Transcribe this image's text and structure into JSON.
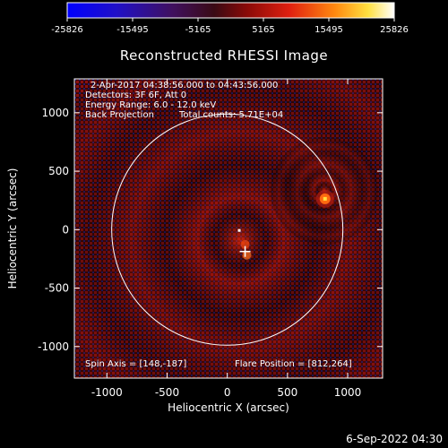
{
  "colorbar": {
    "ticks": [
      "-25826",
      "-15495",
      "-5165",
      "5165",
      "15495",
      "25826"
    ],
    "min": -25826,
    "max": 25826
  },
  "plot": {
    "title": "Reconstructed RHESSI Image",
    "xlabel": "Heliocentric X (arcsec)",
    "ylabel": "Heliocentric Y (arcsec)",
    "x_ticks": [
      "-1000",
      "-500",
      "0",
      "500",
      "1000"
    ],
    "y_ticks": [
      "1000",
      "500",
      "0",
      "-500",
      "-1000"
    ],
    "xlim": [
      -1270,
      1290
    ],
    "ylim": [
      -1270,
      1290
    ]
  },
  "annotations": {
    "time_range": "2-Apr-2017 04:38:56.000 to 04:43:56.000",
    "detectors": "Detectors: 3F 6F, Att 0",
    "energy": "Energy Range: 6.0 - 12.0 keV",
    "method": "Back Projection",
    "counts": "Total counts: 5.71E+04",
    "spin_axis": "Spin Axis = [148,-187]",
    "flare_position": "Flare Position = [812,264]"
  },
  "solar_disk": {
    "radius_arcsec": 960,
    "color": "#ffffff"
  },
  "markers": {
    "spin_axis_xy": [
      148,
      -187
    ],
    "flare_xy": [
      812,
      264
    ]
  },
  "footer": {
    "date": "6-Sep-2022 04:30"
  },
  "colors": {
    "background": "#000000",
    "foreground": "#ffffff"
  }
}
